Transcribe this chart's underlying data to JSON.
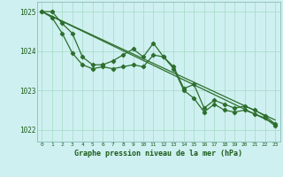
{
  "background_color": "#cff0f0",
  "grid_color": "#aaddcc",
  "line_color": "#2d6e2d",
  "marker_color": "#2d6e2d",
  "xlabel": "Graphe pression niveau de la mer (hPa)",
  "xlabel_color": "#1a5c1a",
  "ylabel_color": "#1a5c1a",
  "ylim": [
    1021.7,
    1025.25
  ],
  "xlim": [
    -0.5,
    23.5
  ],
  "yticks": [
    1022,
    1023,
    1024,
    1025
  ],
  "xticks": [
    0,
    1,
    2,
    3,
    4,
    5,
    6,
    7,
    8,
    9,
    10,
    11,
    12,
    13,
    14,
    15,
    16,
    17,
    18,
    19,
    20,
    21,
    22,
    23
  ],
  "series1_x": [
    0,
    1,
    2,
    3,
    4,
    5,
    6,
    7,
    8,
    9,
    10,
    11,
    12,
    13,
    14,
    15,
    16,
    17,
    18,
    19,
    20,
    21,
    22,
    23
  ],
  "series1_y": [
    1025.0,
    1024.85,
    1024.45,
    1023.95,
    1023.65,
    1023.55,
    1023.6,
    1023.55,
    1023.6,
    1023.65,
    1023.6,
    1023.9,
    1023.85,
    1023.55,
    1023.0,
    1022.8,
    1022.45,
    1022.65,
    1022.5,
    1022.45,
    1022.5,
    1022.4,
    1022.3,
    1022.1
  ],
  "series2_x": [
    0,
    1,
    2,
    3,
    4,
    5,
    6,
    7,
    8,
    9,
    10,
    11,
    12,
    13,
    14,
    15,
    16,
    17,
    18,
    19,
    20,
    21,
    22,
    23
  ],
  "series2_y": [
    1025.0,
    1025.0,
    1024.7,
    1024.45,
    1023.85,
    1023.65,
    1023.65,
    1023.75,
    1023.9,
    1024.05,
    1023.85,
    1024.2,
    1023.85,
    1023.6,
    1023.05,
    1023.15,
    1022.55,
    1022.75,
    1022.65,
    1022.55,
    1022.6,
    1022.5,
    1022.35,
    1022.15
  ],
  "series3_x": [
    0,
    23
  ],
  "series3_y": [
    1025.0,
    1022.15
  ],
  "series4_x": [
    0,
    23
  ],
  "series4_y": [
    1025.0,
    1022.25
  ]
}
